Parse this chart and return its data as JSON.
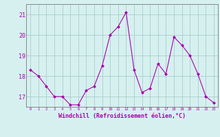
{
  "x": [
    0,
    1,
    2,
    3,
    4,
    5,
    6,
    7,
    8,
    9,
    10,
    11,
    12,
    13,
    14,
    15,
    16,
    17,
    18,
    19,
    20,
    21,
    22,
    23
  ],
  "y": [
    18.3,
    18.0,
    17.5,
    17.0,
    17.0,
    16.6,
    16.6,
    17.3,
    17.5,
    18.5,
    20.0,
    20.4,
    21.1,
    18.3,
    17.2,
    17.4,
    18.6,
    18.1,
    19.9,
    19.5,
    19.0,
    18.1,
    17.0,
    16.7
  ],
  "xlabel": "Windchill (Refroidissement éolien,°C)",
  "ylim": [
    16.5,
    21.5
  ],
  "xlim": [
    -0.5,
    23.5
  ],
  "yticks": [
    17,
    18,
    19,
    20,
    21
  ],
  "xticks": [
    0,
    1,
    2,
    3,
    4,
    5,
    6,
    7,
    8,
    9,
    10,
    11,
    12,
    13,
    14,
    15,
    16,
    17,
    18,
    19,
    20,
    21,
    22,
    23
  ],
  "xtick_labels": [
    "0",
    "1",
    "2",
    "3",
    "4",
    "5",
    "6",
    "7",
    "8",
    "9",
    "10",
    "11",
    "12",
    "13",
    "14",
    "15",
    "16",
    "17",
    "18",
    "19",
    "20",
    "21",
    "22",
    "23"
  ],
  "line_color": "#aa00aa",
  "marker": "D",
  "marker_size": 2,
  "bg_color": "#d6f0f0",
  "grid_color": "#aacccc",
  "axis_color": "#888888",
  "tick_label_color": "#aa00aa",
  "xlabel_color": "#aa00aa",
  "ytick_fontsize": 6,
  "xtick_fontsize": 4,
  "xlabel_fontsize": 6
}
